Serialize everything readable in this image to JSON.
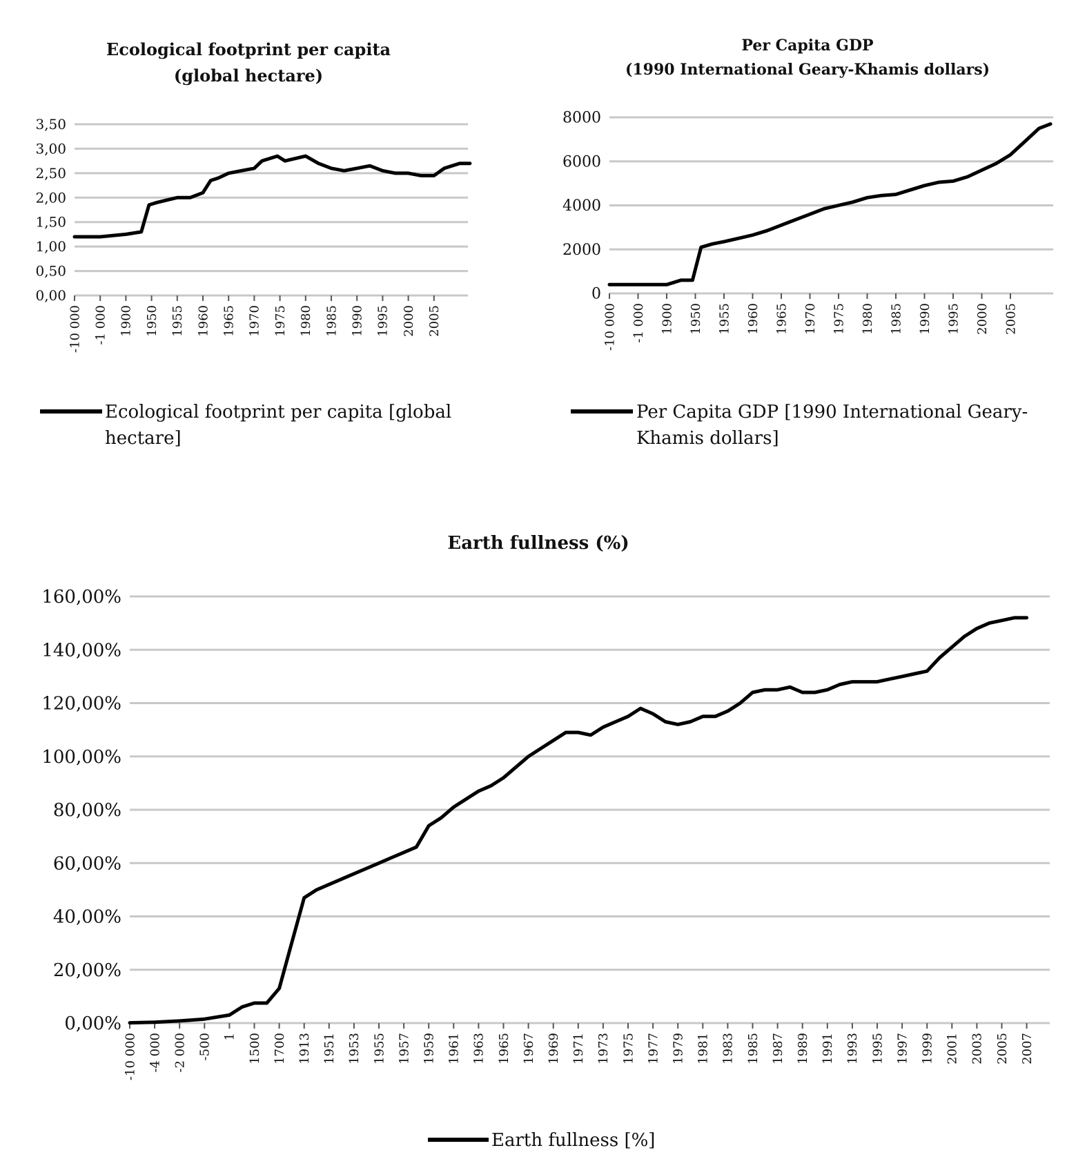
{
  "page": {
    "title": "Earth fullness (%)"
  },
  "colors": {
    "line": "#000000",
    "grid": "#c8c8c8",
    "text": "#111111"
  },
  "chart_data": [
    {
      "id": "eco",
      "type": "line",
      "title_lines": [
        "Ecological footprint per capita",
        "(global hectare)"
      ],
      "categories": [
        "-10 000",
        "-1 000",
        "1900",
        "1950",
        "1955",
        "1960",
        "1965",
        "1970",
        "1975",
        "1980",
        "1985",
        "1990",
        "1995",
        "2000",
        "2005"
      ],
      "yticks": [
        "0,00",
        "0,50",
        "1,00",
        "1,50",
        "2,00",
        "2,50",
        "3,00",
        "3,50"
      ],
      "ylim": [
        0,
        3.5
      ],
      "ystep": 0.5,
      "grid": true,
      "legend": "Ecological footprint per capita [global hectare]",
      "legend_lines": [
        "Ecological footprint per capita [global",
        "hectare]"
      ],
      "series": [
        {
          "name": "Ecological footprint per capita [global hectare]",
          "points": [
            [
              0,
              1.2
            ],
            [
              1,
              1.2
            ],
            [
              2,
              1.25
            ],
            [
              2.6,
              1.3
            ],
            [
              2.9,
              1.85
            ],
            [
              3.2,
              1.9
            ],
            [
              3.6,
              1.95
            ],
            [
              4,
              2.0
            ],
            [
              4.5,
              2.0
            ],
            [
              5,
              2.1
            ],
            [
              5.3,
              2.35
            ],
            [
              5.6,
              2.4
            ],
            [
              6,
              2.5
            ],
            [
              6.5,
              2.55
            ],
            [
              7,
              2.6
            ],
            [
              7.3,
              2.75
            ],
            [
              7.6,
              2.8
            ],
            [
              7.9,
              2.85
            ],
            [
              8.2,
              2.75
            ],
            [
              8.6,
              2.8
            ],
            [
              9,
              2.85
            ],
            [
              9.5,
              2.7
            ],
            [
              10,
              2.6
            ],
            [
              10.5,
              2.55
            ],
            [
              11,
              2.6
            ],
            [
              11.5,
              2.65
            ],
            [
              12,
              2.55
            ],
            [
              12.5,
              2.5
            ],
            [
              13,
              2.5
            ],
            [
              13.5,
              2.45
            ],
            [
              14,
              2.45
            ],
            [
              14.4,
              2.6
            ],
            [
              15,
              2.7
            ],
            [
              15.4,
              2.7
            ]
          ]
        }
      ]
    },
    {
      "id": "gdp",
      "type": "line",
      "title_lines": [
        "Per Capita GDP",
        "(1990 International Geary-Khamis dollars)"
      ],
      "categories": [
        "-10 000",
        "-1 000",
        "1900",
        "1950",
        "1955",
        "1960",
        "1965",
        "1970",
        "1975",
        "1980",
        "1985",
        "1990",
        "1995",
        "2000",
        "2005"
      ],
      "yticks": [
        "0",
        "2000",
        "4000",
        "6000",
        "8000"
      ],
      "ylim": [
        0,
        8000
      ],
      "ystep": 2000,
      "grid": true,
      "legend": "Per Capita GDP [1990 International Geary-Khamis dollars]",
      "legend_lines": [
        "Per Capita GDP [1990 International Geary-",
        "Khamis dollars]"
      ],
      "series": [
        {
          "name": "Per Capita GDP [1990 International Geary-Khamis dollars]",
          "points": [
            [
              0,
              400
            ],
            [
              1,
              400
            ],
            [
              2,
              400
            ],
            [
              2.5,
              600
            ],
            [
              2.9,
              600
            ],
            [
              3.2,
              2100
            ],
            [
              3.6,
              2250
            ],
            [
              4,
              2350
            ],
            [
              4.5,
              2500
            ],
            [
              5,
              2650
            ],
            [
              5.5,
              2850
            ],
            [
              6,
              3100
            ],
            [
              6.5,
              3350
            ],
            [
              7,
              3600
            ],
            [
              7.5,
              3850
            ],
            [
              8,
              4000
            ],
            [
              8.5,
              4150
            ],
            [
              9,
              4350
            ],
            [
              9.5,
              4450
            ],
            [
              10,
              4500
            ],
            [
              10.5,
              4700
            ],
            [
              11,
              4900
            ],
            [
              11.5,
              5050
            ],
            [
              12,
              5100
            ],
            [
              12.5,
              5300
            ],
            [
              13,
              5600
            ],
            [
              13.5,
              5900
            ],
            [
              14,
              6300
            ],
            [
              14.5,
              6900
            ],
            [
              15,
              7500
            ],
            [
              15.4,
              7700
            ]
          ]
        }
      ]
    },
    {
      "id": "earth",
      "type": "line",
      "title_lines": [
        "Earth fullness (%)"
      ],
      "categories": [
        "-10 000",
        "-4 000",
        "-2 000",
        "-500",
        "1",
        "1500",
        "1700",
        "1913",
        "1951",
        "1953",
        "1955",
        "1957",
        "1959",
        "1961",
        "1963",
        "1965",
        "1967",
        "1969",
        "1971",
        "1973",
        "1975",
        "1977",
        "1979",
        "1981",
        "1983",
        "1985",
        "1987",
        "1989",
        "1991",
        "1993",
        "1995",
        "1997",
        "1999",
        "2001",
        "2003",
        "2005",
        "2007"
      ],
      "yticks": [
        "0,00%",
        "20,00%",
        "40,00%",
        "60,00%",
        "80,00%",
        "100,00%",
        "120,00%",
        "140,00%",
        "160,00%"
      ],
      "ylim": [
        0,
        160
      ],
      "ystep": 20,
      "grid": true,
      "legend": "Earth fullness [%]",
      "legend_lines": [
        "Earth fullness [%]"
      ],
      "series": [
        {
          "name": "Earth fullness [%]",
          "points": [
            [
              0,
              0.1
            ],
            [
              1,
              0.3
            ],
            [
              2,
              0.8
            ],
            [
              3,
              1.5
            ],
            [
              4,
              3
            ],
            [
              4.5,
              6
            ],
            [
              5,
              7.5
            ],
            [
              5.5,
              7.5
            ],
            [
              6,
              13
            ],
            [
              6.5,
              30
            ],
            [
              7,
              47
            ],
            [
              7.5,
              50
            ],
            [
              8,
              52
            ],
            [
              8.5,
              54
            ],
            [
              9,
              56
            ],
            [
              9.5,
              58
            ],
            [
              10,
              60
            ],
            [
              10.5,
              62
            ],
            [
              11,
              64
            ],
            [
              11.5,
              66
            ],
            [
              12,
              74
            ],
            [
              12.5,
              77
            ],
            [
              13,
              81
            ],
            [
              13.5,
              84
            ],
            [
              14,
              87
            ],
            [
              14.5,
              89
            ],
            [
              15,
              92
            ],
            [
              15.5,
              96
            ],
            [
              16,
              100
            ],
            [
              16.5,
              103
            ],
            [
              17,
              106
            ],
            [
              17.5,
              109
            ],
            [
              18,
              109
            ],
            [
              18.5,
              108
            ],
            [
              19,
              111
            ],
            [
              19.5,
              113
            ],
            [
              20,
              115
            ],
            [
              20.5,
              118
            ],
            [
              21,
              116
            ],
            [
              21.5,
              113
            ],
            [
              22,
              112
            ],
            [
              22.5,
              113
            ],
            [
              23,
              115
            ],
            [
              23.5,
              115
            ],
            [
              24,
              117
            ],
            [
              24.5,
              120
            ],
            [
              25,
              124
            ],
            [
              25.5,
              125
            ],
            [
              26,
              125
            ],
            [
              26.5,
              126
            ],
            [
              27,
              124
            ],
            [
              27.5,
              124
            ],
            [
              28,
              125
            ],
            [
              28.5,
              127
            ],
            [
              29,
              128
            ],
            [
              29.5,
              128
            ],
            [
              30,
              128
            ],
            [
              30.5,
              129
            ],
            [
              31,
              130
            ],
            [
              31.5,
              131
            ],
            [
              32,
              132
            ],
            [
              32.5,
              137
            ],
            [
              33,
              141
            ],
            [
              33.5,
              145
            ],
            [
              34,
              148
            ],
            [
              34.5,
              150
            ],
            [
              35,
              151
            ],
            [
              35.5,
              152
            ],
            [
              36,
              152
            ]
          ]
        }
      ]
    }
  ]
}
